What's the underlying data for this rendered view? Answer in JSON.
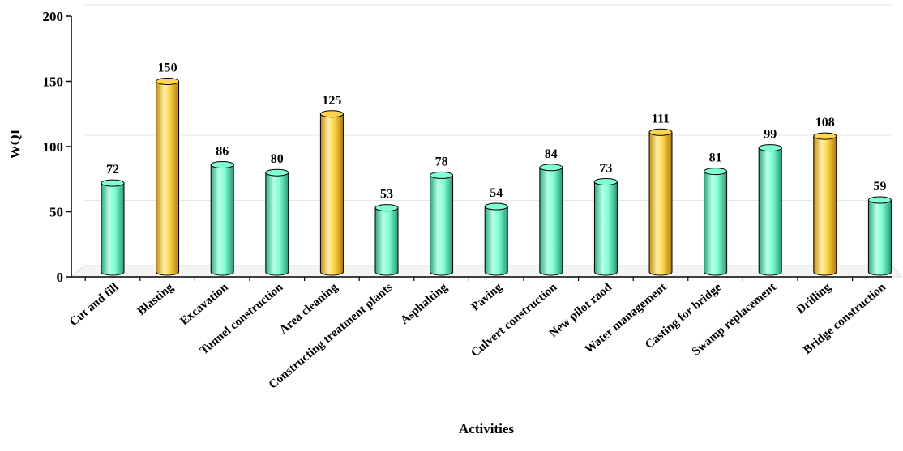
{
  "chart_data": {
    "type": "bar",
    "title": "",
    "xlabel": "Activities",
    "ylabel": "WQI",
    "ylim": [
      0,
      200
    ],
    "yticks": [
      0,
      50,
      100,
      150,
      200
    ],
    "grid": true,
    "categories": [
      "Cut and fill",
      "Blasting",
      "Excavation",
      "Tunnel construction",
      "Area cleaning",
      "Constructing treatment plants",
      "Asphalting",
      "Paving",
      "Culvert construction",
      "New pilot raod",
      "Water management",
      "Casting for bridge",
      "Swamp replacement",
      "Drilling",
      "Bridge construction"
    ],
    "values": [
      72,
      150,
      86,
      80,
      125,
      53,
      78,
      54,
      84,
      73,
      111,
      81,
      99,
      108,
      59
    ],
    "highlight": [
      false,
      true,
      false,
      false,
      true,
      false,
      false,
      false,
      false,
      false,
      true,
      false,
      false,
      true,
      false
    ],
    "colors": {
      "normal": "#7fffd4",
      "highlight": "#ffd54a"
    }
  }
}
